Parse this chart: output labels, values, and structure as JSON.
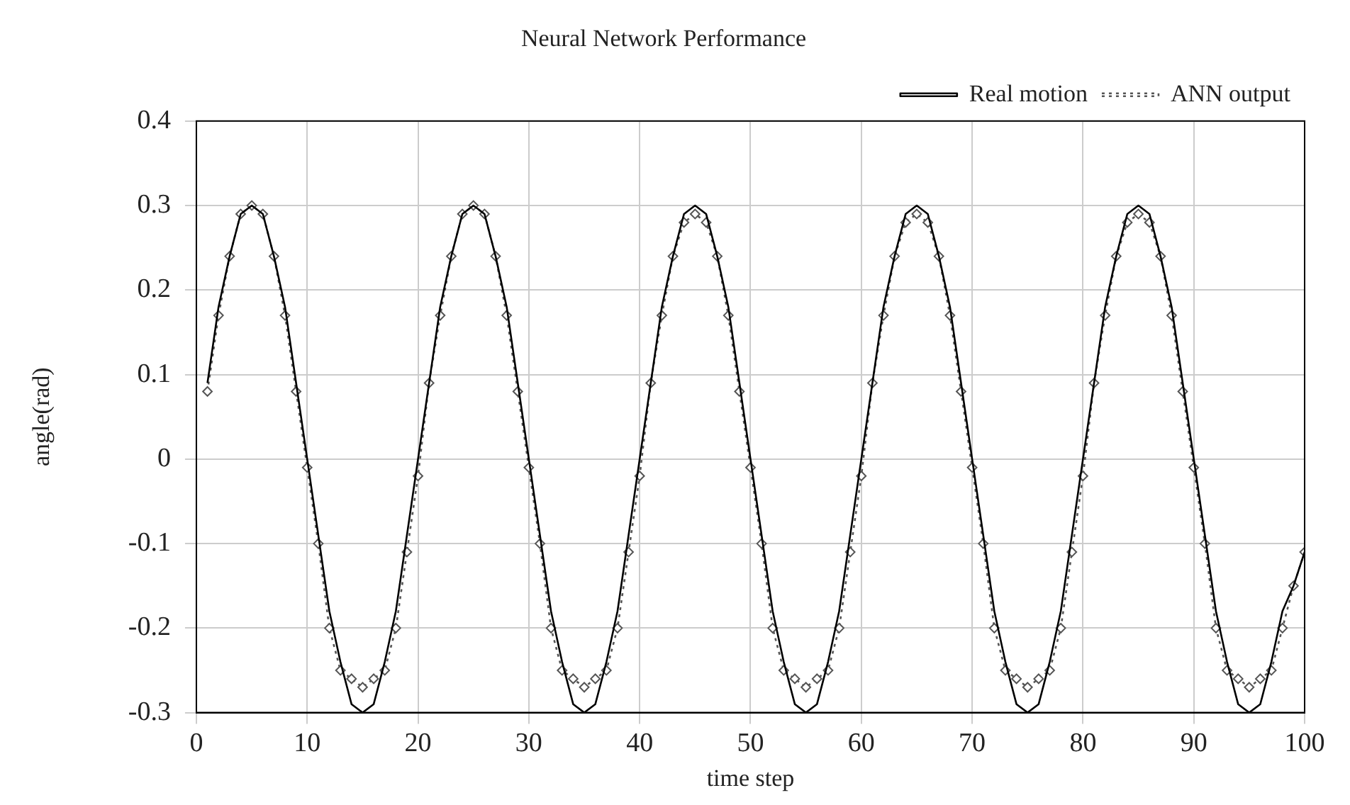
{
  "chart_data": {
    "type": "line",
    "title": "Neural Network Performance",
    "xlabel": "time step",
    "ylabel": "angle(rad)",
    "x": [
      1,
      2,
      3,
      4,
      5,
      6,
      7,
      8,
      9,
      10,
      11,
      12,
      13,
      14,
      15,
      16,
      17,
      18,
      19,
      20,
      21,
      22,
      23,
      24,
      25,
      26,
      27,
      28,
      29,
      30,
      31,
      32,
      33,
      34,
      35,
      36,
      37,
      38,
      39,
      40,
      41,
      42,
      43,
      44,
      45,
      46,
      47,
      48,
      49,
      50,
      51,
      52,
      53,
      54,
      55,
      56,
      57,
      58,
      59,
      60,
      61,
      62,
      63,
      64,
      65,
      66,
      67,
      68,
      69,
      70,
      71,
      72,
      73,
      74,
      75,
      76,
      77,
      78,
      79,
      80,
      81,
      82,
      83,
      84,
      85,
      86,
      87,
      88,
      89,
      90,
      91,
      92,
      93,
      94,
      95,
      96,
      97,
      98,
      99,
      100
    ],
    "series": [
      {
        "name": "Real motion",
        "color": "#000000",
        "line_style": "solid",
        "marker": "none",
        "values": [
          0.09,
          0.18,
          0.24,
          0.29,
          0.3,
          0.29,
          0.24,
          0.18,
          0.09,
          0,
          -0.09,
          -0.18,
          -0.24,
          -0.29,
          -0.3,
          -0.29,
          -0.24,
          -0.18,
          -0.09,
          0,
          0.09,
          0.18,
          0.24,
          0.29,
          0.3,
          0.29,
          0.24,
          0.18,
          0.09,
          0,
          -0.09,
          -0.18,
          -0.24,
          -0.29,
          -0.3,
          -0.29,
          -0.24,
          -0.18,
          -0.09,
          0,
          0.09,
          0.18,
          0.24,
          0.29,
          0.3,
          0.29,
          0.24,
          0.18,
          0.09,
          0,
          -0.09,
          -0.18,
          -0.24,
          -0.29,
          -0.3,
          -0.29,
          -0.24,
          -0.18,
          -0.09,
          0,
          0.09,
          0.18,
          0.24,
          0.29,
          0.3,
          0.29,
          0.24,
          0.18,
          0.09,
          0,
          -0.09,
          -0.18,
          -0.24,
          -0.29,
          -0.3,
          -0.29,
          -0.24,
          -0.18,
          -0.09,
          0,
          0.09,
          0.18,
          0.24,
          0.29,
          0.3,
          0.29,
          0.24,
          0.18,
          0.09,
          0,
          -0.09,
          -0.18,
          -0.24,
          -0.29,
          -0.3,
          -0.29,
          -0.24,
          -0.18,
          -0.15,
          -0.11
        ]
      },
      {
        "name": "ANN output",
        "color": "#555555",
        "line_style": "dotted",
        "marker": "diamond",
        "values": [
          0.08,
          0.17,
          0.24,
          0.29,
          0.3,
          0.29,
          0.24,
          0.17,
          0.08,
          -0.01,
          -0.1,
          -0.2,
          -0.25,
          -0.26,
          -0.27,
          -0.26,
          -0.25,
          -0.2,
          -0.11,
          -0.02,
          0.09,
          0.17,
          0.24,
          0.29,
          0.3,
          0.29,
          0.24,
          0.17,
          0.08,
          -0.01,
          -0.1,
          -0.2,
          -0.25,
          -0.26,
          -0.27,
          -0.26,
          -0.25,
          -0.2,
          -0.11,
          -0.02,
          0.09,
          0.17,
          0.24,
          0.28,
          0.29,
          0.28,
          0.24,
          0.17,
          0.08,
          -0.01,
          -0.1,
          -0.2,
          -0.25,
          -0.26,
          -0.27,
          -0.26,
          -0.25,
          -0.2,
          -0.11,
          -0.02,
          0.09,
          0.17,
          0.24,
          0.28,
          0.29,
          0.28,
          0.24,
          0.17,
          0.08,
          -0.01,
          -0.1,
          -0.2,
          -0.25,
          -0.26,
          -0.27,
          -0.26,
          -0.25,
          -0.2,
          -0.11,
          -0.02,
          0.09,
          0.17,
          0.24,
          0.28,
          0.29,
          0.28,
          0.24,
          0.17,
          0.08,
          -0.01,
          -0.1,
          -0.2,
          -0.25,
          -0.26,
          -0.27,
          -0.26,
          -0.25,
          -0.2,
          -0.15,
          -0.11
        ]
      }
    ],
    "xlim": [
      0,
      100
    ],
    "xticks": [
      0,
      10,
      20,
      30,
      40,
      50,
      60,
      70,
      80,
      90,
      100
    ],
    "ylim": [
      -0.3,
      0.4
    ],
    "yticks": [
      -0.3,
      -0.2,
      -0.1,
      0,
      0.1,
      0.2,
      0.3,
      0.4
    ],
    "grid": true,
    "legend": "top right"
  }
}
